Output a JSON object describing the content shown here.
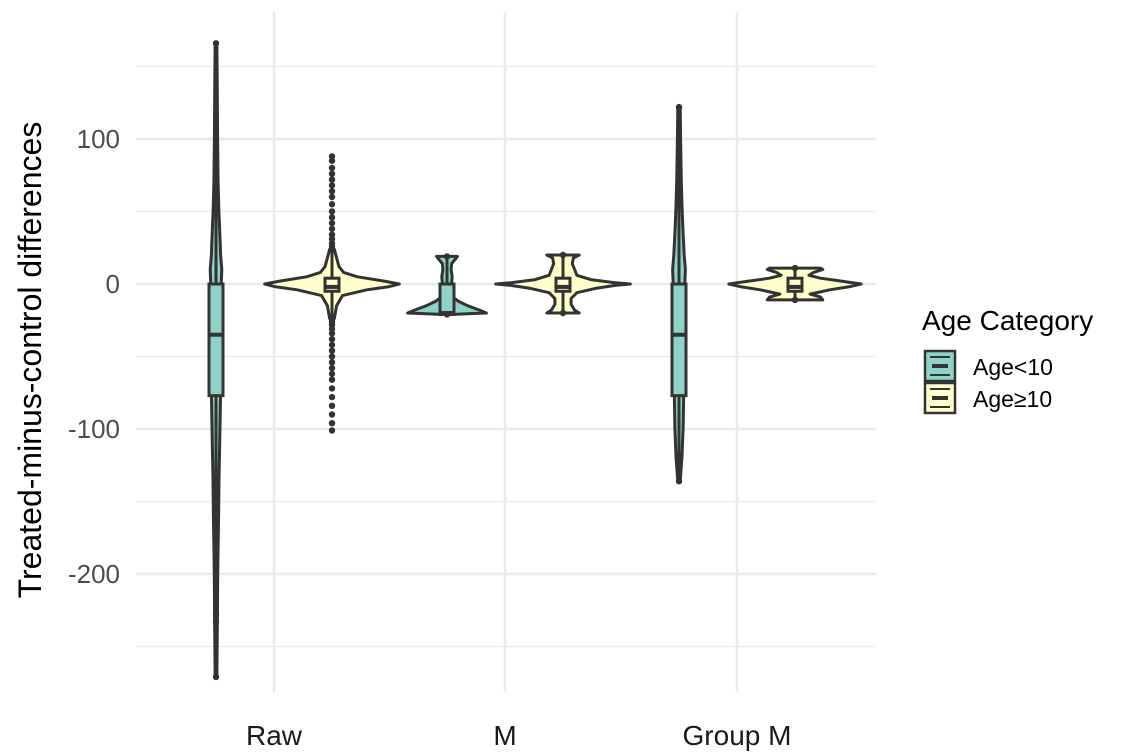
{
  "chart_data": {
    "type": "violin",
    "ylabel": "Treated-minus-control differences",
    "xlabel": "",
    "categories": [
      "Raw",
      "M",
      "Group M"
    ],
    "yticks": [
      100,
      0,
      -100,
      -200
    ],
    "ylim": [
      -275,
      175
    ],
    "legend": {
      "title": "Age Category",
      "position": "right",
      "entries": [
        "Age<10",
        "Age≥10"
      ]
    },
    "colors": {
      "Age<10": "#8dd3c7",
      "Age≥10": "#ffffcc",
      "outline": "#333333",
      "grid": "#ebebeb"
    },
    "series": [
      {
        "name": "Age<10",
        "groups": [
          {
            "category": "Raw",
            "min": -271,
            "q1": -77,
            "median": -35,
            "q3": 0,
            "max": 166,
            "profile": [
              [
                -271,
                0.8
              ],
              [
                -230,
                1.2
              ],
              [
                -200,
                1.5
              ],
              [
                -160,
                2.2
              ],
              [
                -130,
                2.7
              ],
              [
                -110,
                3.2
              ],
              [
                -90,
                3.6
              ],
              [
                -75,
                4
              ],
              [
                -60,
                3.8
              ],
              [
                -40,
                3.5
              ],
              [
                -20,
                3.8
              ],
              [
                0,
                4.5
              ],
              [
                10,
                5
              ],
              [
                20,
                4
              ],
              [
                30,
                3.5
              ],
              [
                50,
                2.5
              ],
              [
                70,
                1.8
              ],
              [
                100,
                1.4
              ],
              [
                130,
                1.1
              ],
              [
                166,
                0.8
              ]
            ],
            "outliers": [
              -195,
              -198,
              -203,
              -228,
              -233
            ]
          },
          {
            "category": "M",
            "min": -21,
            "q1": -21,
            "median": -20,
            "q3": 0,
            "max": 19,
            "profile": [
              [
                -21,
                5
              ],
              [
                -20,
                34
              ],
              [
                -18,
                28
              ],
              [
                -15,
                18
              ],
              [
                -12,
                10
              ],
              [
                -9,
                5
              ],
              [
                -6,
                3
              ],
              [
                -3,
                2.5
              ],
              [
                0,
                4
              ],
              [
                5,
                4.5
              ],
              [
                10,
                3.5
              ],
              [
                14,
                4
              ],
              [
                17,
                7
              ],
              [
                19,
                9
              ]
            ],
            "outliers": []
          },
          {
            "category": "Group M",
            "min": -136,
            "q1": -77,
            "median": -35,
            "q3": 0,
            "max": 122,
            "profile": [
              [
                -136,
                1
              ],
              [
                -120,
                2.5
              ],
              [
                -100,
                3.5
              ],
              [
                -80,
                4
              ],
              [
                -60,
                3.8
              ],
              [
                -40,
                3.5
              ],
              [
                -20,
                3.8
              ],
              [
                0,
                5
              ],
              [
                10,
                5.5
              ],
              [
                20,
                4.5
              ],
              [
                35,
                3.5
              ],
              [
                50,
                2.8
              ],
              [
                70,
                2
              ],
              [
                100,
                1.4
              ],
              [
                122,
                1
              ]
            ],
            "outliers": []
          }
        ]
      },
      {
        "name": "Age≥10",
        "groups": [
          {
            "category": "Raw",
            "min": -24,
            "q1": -5,
            "median": -2,
            "q3": 4,
            "max": 24,
            "profile": [
              [
                -24,
                2
              ],
              [
                -15,
                4
              ],
              [
                -8,
                9
              ],
              [
                -4,
                30
              ],
              [
                -2,
                48
              ],
              [
                0,
                58
              ],
              [
                2,
                45
              ],
              [
                5,
                22
              ],
              [
                8,
                10
              ],
              [
                12,
                6
              ],
              [
                18,
                4
              ],
              [
                24,
                2
              ]
            ],
            "outliers": [
              -101,
              -96,
              -90,
              -84,
              -78,
              -72,
              -66,
              -62,
              -58,
              -54,
              -50,
              -46,
              -42,
              -38,
              -34,
              -31,
              -28,
              -26,
              26,
              28,
              31,
              34,
              38,
              42,
              46,
              50,
              55,
              60,
              64,
              68,
              72,
              76,
              80,
              85,
              88
            ]
          },
          {
            "category": "M",
            "min": -20,
            "q1": -5,
            "median": -2,
            "q3": 4,
            "max": 20,
            "profile": [
              [
                -20,
                14
              ],
              [
                -18,
                10
              ],
              [
                -14,
                7
              ],
              [
                -10,
                7
              ],
              [
                -6,
                12
              ],
              [
                -3,
                28
              ],
              [
                -1,
                45
              ],
              [
                0,
                58
              ],
              [
                1,
                44
              ],
              [
                3,
                24
              ],
              [
                6,
                12
              ],
              [
                10,
                10
              ],
              [
                14,
                8
              ],
              [
                18,
                9
              ],
              [
                20,
                14
              ]
            ],
            "outliers": []
          },
          {
            "category": "Group M",
            "min": -11,
            "q1": -5,
            "median": -2,
            "q3": 4,
            "max": 11,
            "profile": [
              [
                -11,
                24
              ],
              [
                -9,
                22
              ],
              [
                -7,
                13
              ],
              [
                -4,
                30
              ],
              [
                -2,
                46
              ],
              [
                0,
                57
              ],
              [
                2,
                40
              ],
              [
                4,
                22
              ],
              [
                6,
                12
              ],
              [
                8,
                16
              ],
              [
                10,
                24
              ],
              [
                11,
                22
              ]
            ],
            "outliers": []
          }
        ]
      }
    ]
  }
}
